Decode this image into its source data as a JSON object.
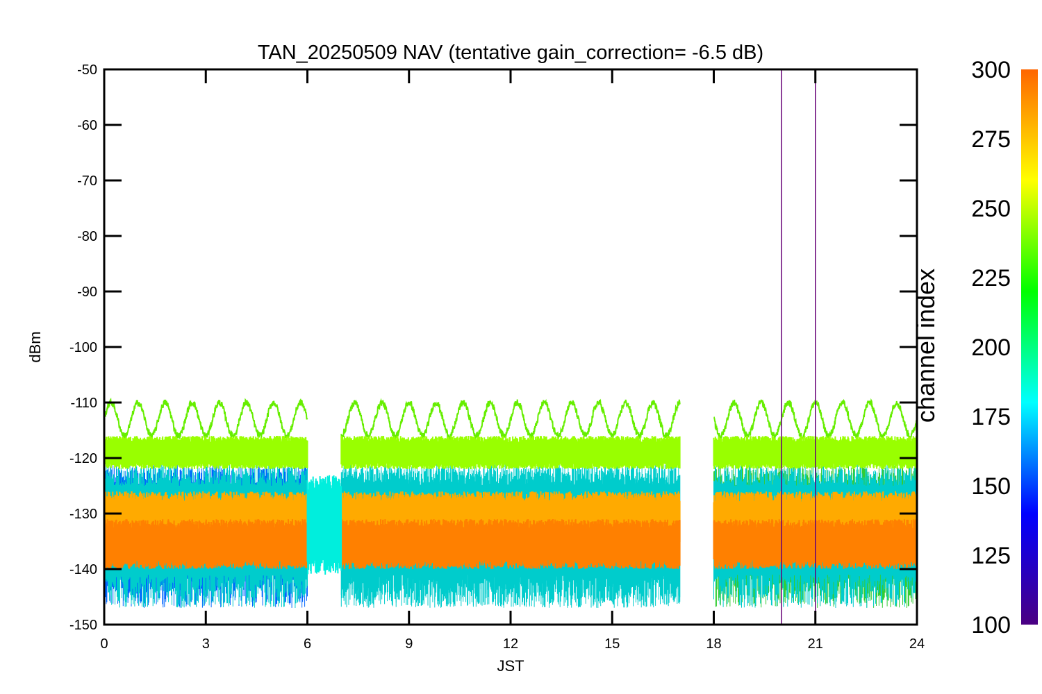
{
  "chart_data": {
    "type": "line",
    "title": "TAN_20250509 NAV (tentative gain_correction= -6.5 dB)",
    "xlabel": "JST",
    "ylabel": "dBm",
    "xlim": [
      0,
      24
    ],
    "ylim": [
      -150,
      -50
    ],
    "x_ticks": [
      "0",
      "3",
      "6",
      "9",
      "12",
      "15",
      "18",
      "21",
      "24"
    ],
    "y_ticks": [
      "-50",
      "-60",
      "-70",
      "-80",
      "-90",
      "-100",
      "-110",
      "-120",
      "-130",
      "-140",
      "-150"
    ],
    "colorbar": {
      "label": "channel index",
      "range": [
        100,
        300
      ],
      "ticks": [
        "300",
        "275",
        "250",
        "225",
        "200",
        "175",
        "150",
        "125",
        "100"
      ],
      "colors": [
        "#4b0082",
        "#0000ff",
        "#00ffff",
        "#00ff00",
        "#ffff00",
        "#ff6600"
      ]
    },
    "data_gaps_jst": [
      [
        6.0,
        7.0
      ],
      [
        17.0,
        18.0
      ],
      [
        20.0,
        20.1
      ]
    ],
    "series": [
      {
        "channel_index": 245,
        "color": "#66ee00",
        "shape": "sinusoid",
        "center_dbm": -113,
        "amplitude_db": 3,
        "period_h": 0.8,
        "segments_jst": [
          [
            0,
            6
          ],
          [
            7,
            17
          ],
          [
            18,
            24
          ]
        ]
      },
      {
        "channel_index": 260,
        "color": "#99ff00",
        "shape": "noise band",
        "center_dbm": -119,
        "spread_db": 3,
        "segments_jst": [
          [
            0,
            6
          ],
          [
            7,
            17
          ],
          [
            18,
            24
          ]
        ]
      },
      {
        "channel_index": 285,
        "color": "#ffaa00",
        "shape": "noise band",
        "center_dbm": -131,
        "spread_db": 5,
        "segments_jst": [
          [
            0,
            6
          ],
          [
            7,
            17
          ],
          [
            18,
            24
          ]
        ]
      },
      {
        "channel_index": 295,
        "color": "#ff8000",
        "shape": "noise band",
        "center_dbm": -135.5,
        "spread_db": 4.5,
        "segments_jst": [
          [
            0,
            6
          ],
          [
            7,
            17
          ],
          [
            18,
            24
          ]
        ]
      },
      {
        "channel_index": 180,
        "color": "#00eedd",
        "shape": "noise band",
        "center_dbm": -132,
        "spread_db": 9,
        "segments_jst": [
          [
            6,
            7
          ]
        ]
      }
    ],
    "vertical_lines_jst": [
      20.0,
      21.0
    ]
  }
}
